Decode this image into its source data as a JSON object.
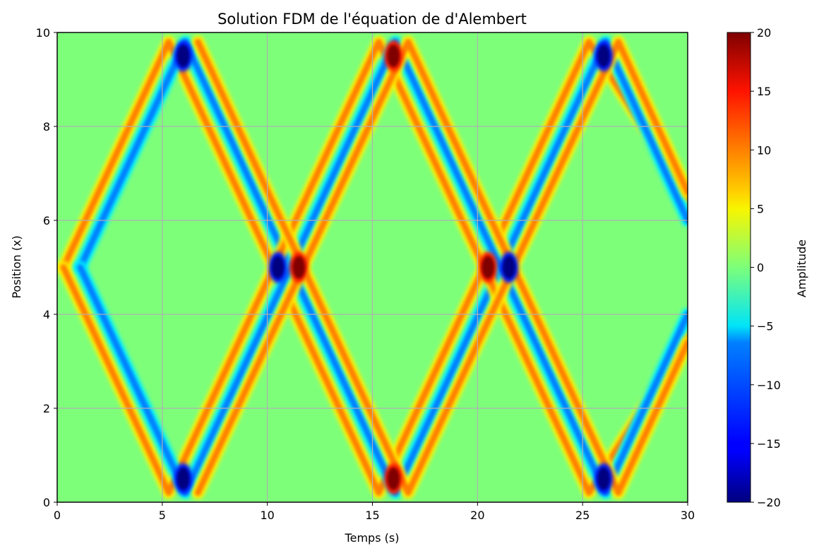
{
  "chart_data": {
    "type": "heatmap",
    "title": "Solution FDM de l'équation de d'Alembert",
    "xlabel": "Temps (s)",
    "ylabel": "Position (x)",
    "xlim": [
      0,
      30
    ],
    "ylim": [
      0,
      10
    ],
    "x_ticks": [
      "0",
      "5",
      "10",
      "15",
      "20",
      "25",
      "30"
    ],
    "y_ticks": [
      "0",
      "2",
      "4",
      "6",
      "8",
      "10"
    ],
    "grid": true,
    "colormap": "jet",
    "colorbar": {
      "label": "Amplitude",
      "range": [
        -20,
        20
      ],
      "ticks": [
        "20",
        "15",
        "10",
        "5",
        "0",
        "−5",
        "−10",
        "−15",
        "−20"
      ]
    },
    "background_value": 0,
    "band_traces": [
      {
        "t": [
          0.3,
          5.3,
          10.3,
          15.3,
          20.3,
          25.3,
          30
        ],
        "x": [
          5.0,
          9.8,
          5.0,
          0.2,
          5.0,
          9.8,
          6.5
        ],
        "value": 10
      },
      {
        "t": [
          1.1,
          6.1,
          11.1,
          16.1,
          21.1,
          26.1,
          30
        ],
        "x": [
          5.0,
          9.8,
          5.0,
          0.2,
          5.0,
          9.8,
          6.0
        ],
        "value": -10
      },
      {
        "t": [
          0.3,
          5.3,
          10.3,
          15.3,
          20.3,
          25.3,
          30
        ],
        "x": [
          5.0,
          0.2,
          5.0,
          9.8,
          5.0,
          0.2,
          3.5
        ],
        "value": 10
      },
      {
        "t": [
          1.1,
          6.1,
          11.1,
          16.1,
          21.1,
          26.1,
          30
        ],
        "x": [
          5.0,
          0.2,
          5.0,
          9.8,
          5.0,
          0.2,
          4.0
        ],
        "value": -10
      },
      {
        "t": [
          6.7,
          11.7,
          16.7,
          21.7,
          26.7,
          30
        ],
        "x": [
          9.8,
          5.0,
          0.2,
          5.0,
          9.8,
          6.6
        ],
        "value": 10
      },
      {
        "t": [
          6.7,
          11.7,
          16.7,
          21.7,
          26.7,
          30
        ],
        "x": [
          0.2,
          5.0,
          9.8,
          5.0,
          0.2,
          3.4
        ],
        "value": 10
      }
    ],
    "peaks": [
      {
        "t": 6.0,
        "x": 9.5,
        "value": -20
      },
      {
        "t": 6.0,
        "x": 0.5,
        "value": -20
      },
      {
        "t": 10.5,
        "x": 5.0,
        "value": -20
      },
      {
        "t": 11.5,
        "x": 5.0,
        "value": 20
      },
      {
        "t": 16.0,
        "x": 9.5,
        "value": 20
      },
      {
        "t": 16.0,
        "x": 0.5,
        "value": 20
      },
      {
        "t": 20.5,
        "x": 5.0,
        "value": 20
      },
      {
        "t": 21.5,
        "x": 5.0,
        "value": -20
      },
      {
        "t": 26.0,
        "x": 9.5,
        "value": -20
      },
      {
        "t": 26.0,
        "x": 0.5,
        "value": -20
      }
    ]
  }
}
